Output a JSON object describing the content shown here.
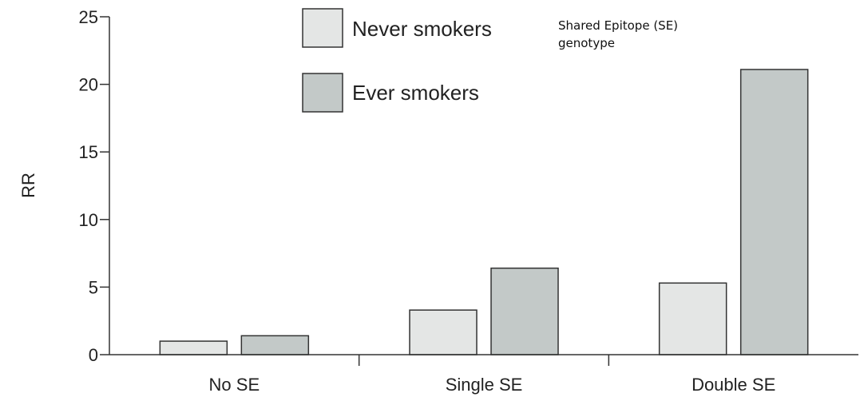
{
  "chart_data": {
    "type": "bar",
    "ylabel": "RR",
    "xlabel": "",
    "ylim": [
      0,
      25
    ],
    "yticks": [
      "0",
      "5",
      "10",
      "15",
      "20",
      "25"
    ],
    "categories": [
      "No SE",
      "Single SE",
      "Double SE"
    ],
    "series": [
      {
        "name": "Never smokers",
        "values": [
          1.0,
          3.3,
          5.3
        ],
        "color": "#e4e6e5"
      },
      {
        "name": "Ever smokers",
        "values": [
          1.4,
          6.4,
          21.1
        ],
        "color": "#c3c9c8"
      }
    ],
    "grid": false,
    "legend_position": "top-center",
    "annotation": [
      "Shared Epitope (SE)",
      "genotype"
    ]
  }
}
